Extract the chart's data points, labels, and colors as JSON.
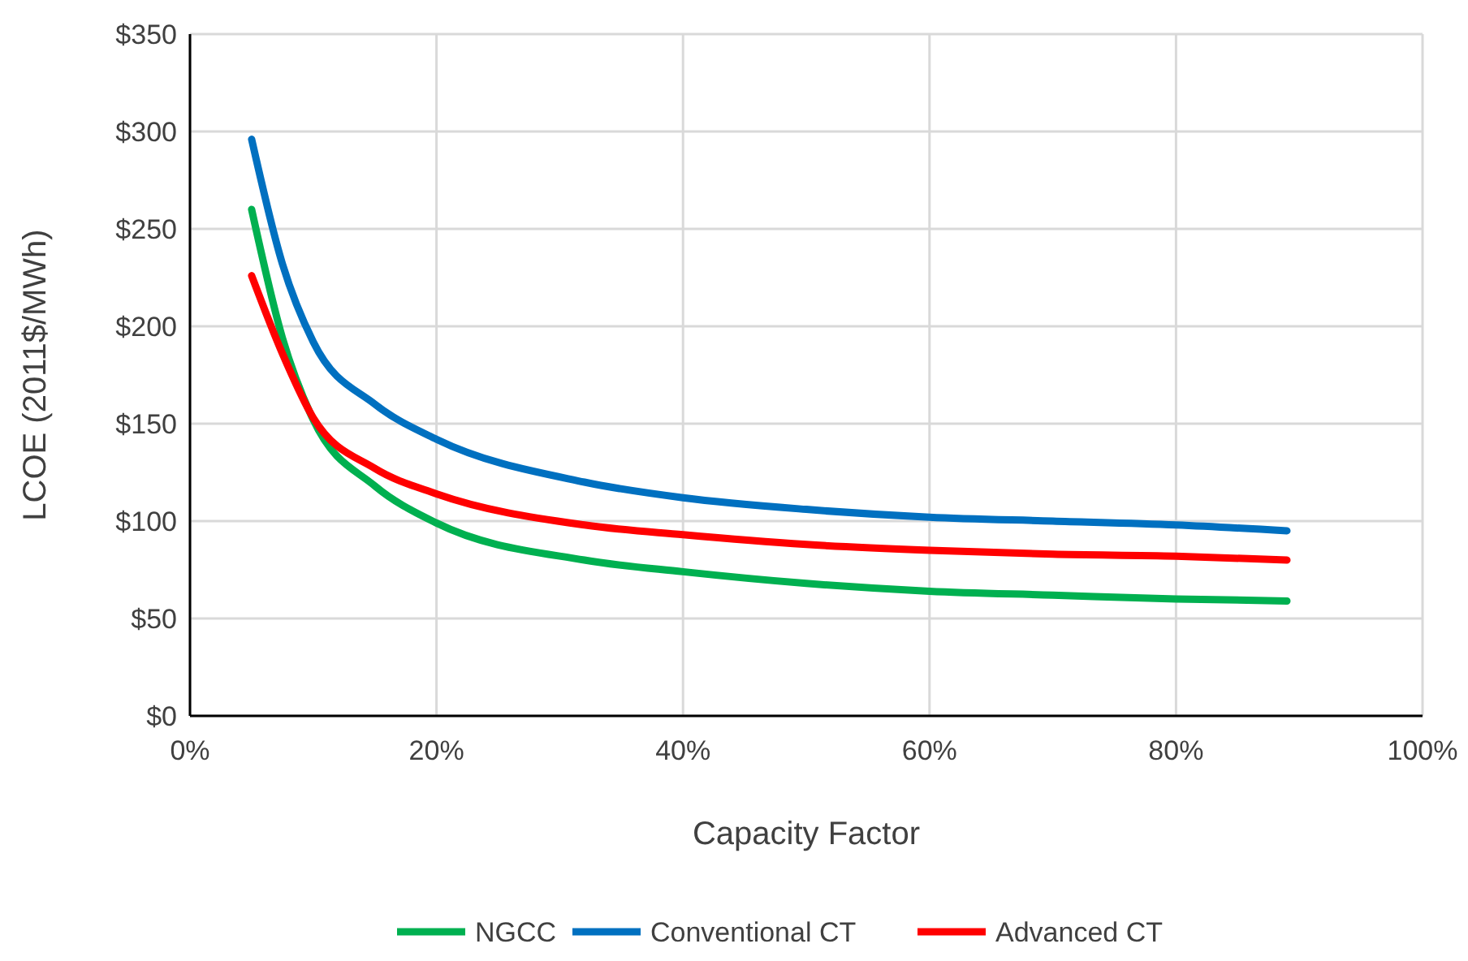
{
  "chart_data": {
    "type": "line",
    "xlabel": "Capacity Factor",
    "ylabel": "LCOE (2011$/MWh)",
    "x": [
      5,
      7.5,
      10,
      15,
      20,
      32,
      40,
      50,
      60,
      70,
      80,
      89
    ],
    "series": [
      {
        "name": "NGCC",
        "color": "#00b050",
        "values": [
          260,
          194,
          152,
          118,
          99,
          80,
          74,
          68,
          64,
          62,
          60,
          59
        ]
      },
      {
        "name": "Conventional CT",
        "color": "#0070c0",
        "values": [
          296,
          232,
          192,
          160,
          142,
          120,
          112,
          106,
          102,
          100,
          98,
          95
        ]
      },
      {
        "name": "Advanced CT",
        "color": "#ff0000",
        "values": [
          226,
          186,
          153,
          127,
          114,
          98,
          93,
          88,
          85,
          83,
          82,
          80
        ]
      }
    ],
    "xlim": [
      0,
      100
    ],
    "xticks": [
      {
        "value": 0,
        "label": "0%"
      },
      {
        "value": 20,
        "label": "20%"
      },
      {
        "value": 40,
        "label": "40%"
      },
      {
        "value": 60,
        "label": "60%"
      },
      {
        "value": 80,
        "label": "80%"
      },
      {
        "value": 100,
        "label": "100%"
      }
    ],
    "ylim": [
      0,
      350
    ],
    "yticks": [
      {
        "value": 0,
        "label": "$0"
      },
      {
        "value": 50,
        "label": "$50"
      },
      {
        "value": 100,
        "label": "$100"
      },
      {
        "value": 150,
        "label": "$150"
      },
      {
        "value": 200,
        "label": "$200"
      },
      {
        "value": 250,
        "label": "$250"
      },
      {
        "value": 300,
        "label": "$300"
      },
      {
        "value": 350,
        "label": "$350"
      }
    ],
    "grid": true,
    "legend": "bottom",
    "marker": "none",
    "line_style": "solid"
  }
}
